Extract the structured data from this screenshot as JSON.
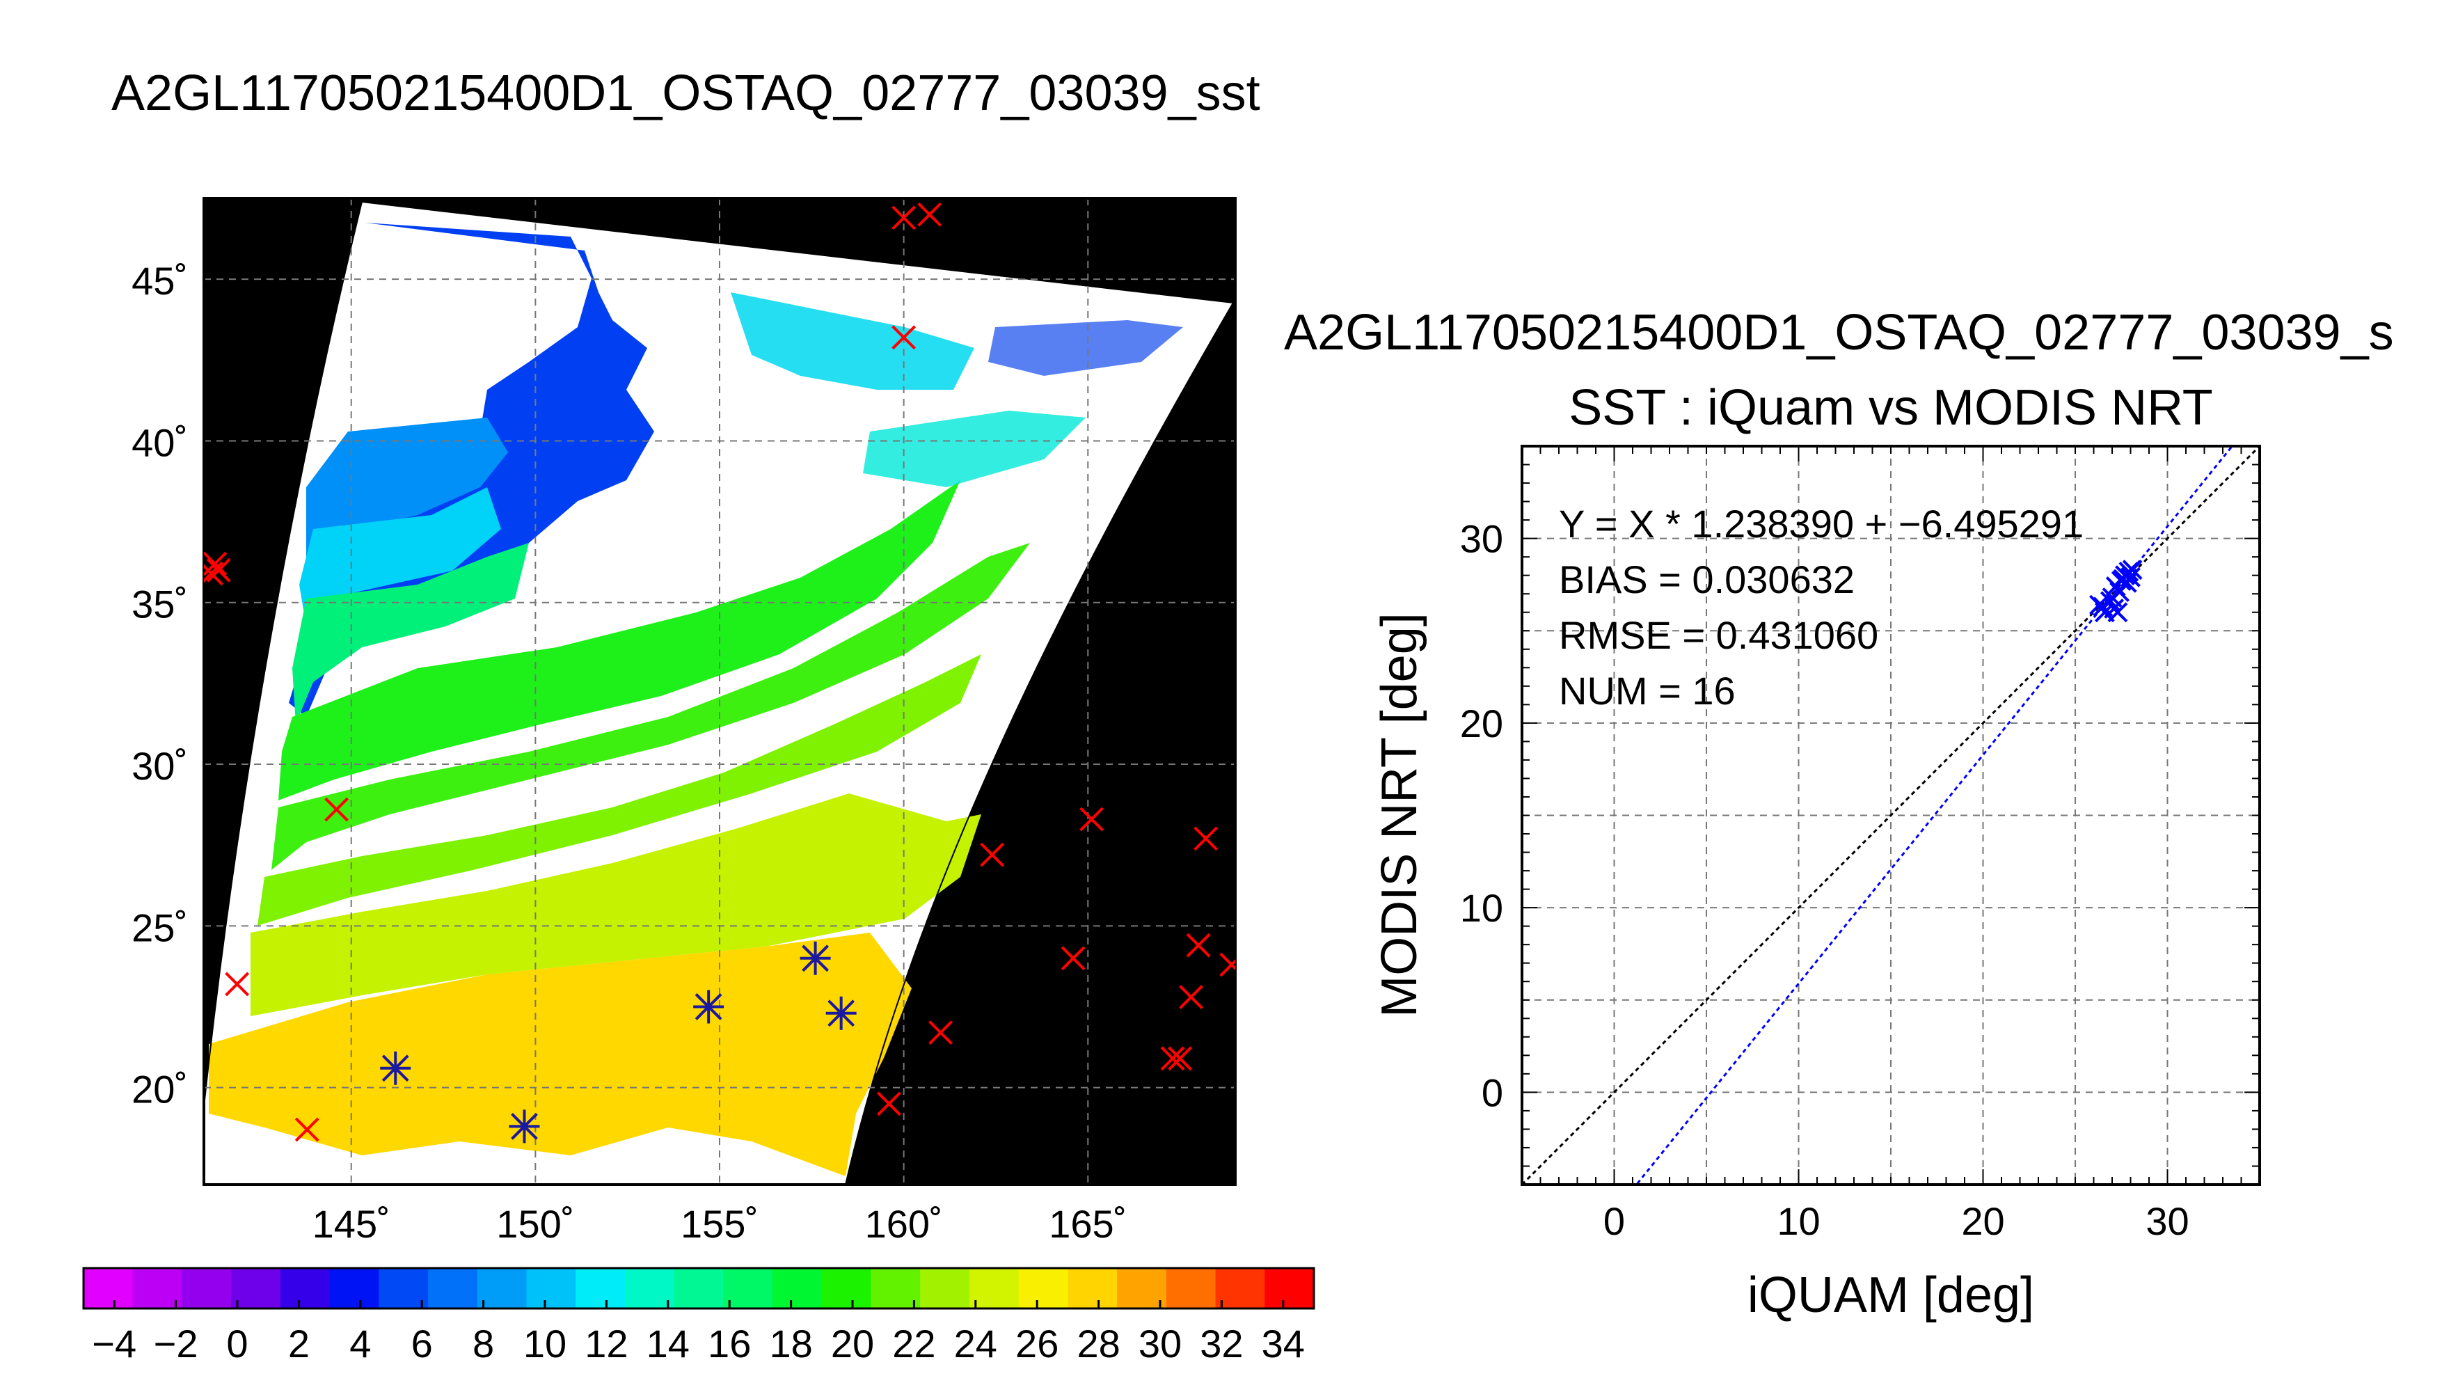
{
  "map_title": "A2GL117050215400D1_OSTAQ_02777_03039_sst",
  "scatter_header": "A2GL117050215400D1_OSTAQ_02777_03039_s",
  "colorbar": {
    "ticks": [
      "-4",
      "-2",
      "0",
      "2",
      "4",
      "6",
      "8",
      "10",
      "12",
      "14",
      "16",
      "18",
      "20",
      "22",
      "24",
      "26",
      "28",
      "30",
      "32",
      "34"
    ],
    "range": [
      -5,
      35
    ],
    "colors": [
      "#e100ff",
      "#bb00f5",
      "#9400ee",
      "#6e00ea",
      "#3500e9",
      "#0013f4",
      "#0049f5",
      "#0071f8",
      "#009df8",
      "#00c2fa",
      "#00ecf8",
      "#00f7c6",
      "#00f794",
      "#00f765",
      "#00f631",
      "#1af200",
      "#62f200",
      "#a2f200",
      "#d3f400",
      "#f8f000",
      "#ffd400",
      "#ffa300",
      "#ff6f00",
      "#ff3400",
      "#ff0000"
    ]
  },
  "map_axes": {
    "lat_labels": [
      "45˚",
      "40˚",
      "35˚",
      "30˚",
      "25˚",
      "20˚"
    ],
    "lon_labels": [
      "145˚",
      "150˚",
      "155˚",
      "160˚",
      "165˚"
    ]
  },
  "chart_data": {
    "type": "scatter",
    "title": "SST : iQuam vs MODIS NRT",
    "xlabel": "iQUAM [deg]",
    "ylabel": "MODIS NRT [deg]",
    "xlim": [
      -5,
      35
    ],
    "ylim": [
      -5,
      35
    ],
    "x_ticks": [
      "0",
      "10",
      "20",
      "30"
    ],
    "y_ticks": [
      "0",
      "10",
      "20",
      "30"
    ],
    "grid": true,
    "annotations": [
      "Y = X * 1.238390 + -6.495291",
      "BIAS = 0.030632",
      "RMSE = 0.431060",
      "NUM = 16"
    ],
    "points": [
      {
        "x": 26.3,
        "y": 26.4
      },
      {
        "x": 26.6,
        "y": 26.0
      },
      {
        "x": 27.0,
        "y": 26.8
      },
      {
        "x": 27.2,
        "y": 27.4
      },
      {
        "x": 27.3,
        "y": 26.0
      },
      {
        "x": 27.5,
        "y": 27.7
      },
      {
        "x": 27.7,
        "y": 28.0
      },
      {
        "x": 27.8,
        "y": 27.6
      },
      {
        "x": 27.9,
        "y": 28.2
      },
      {
        "x": 28.0,
        "y": 27.9
      },
      {
        "x": 26.9,
        "y": 26.6
      },
      {
        "x": 27.4,
        "y": 27.1
      },
      {
        "x": 27.6,
        "y": 27.8
      },
      {
        "x": 26.5,
        "y": 26.3
      },
      {
        "x": 27.1,
        "y": 26.2
      },
      {
        "x": 28.1,
        "y": 28.3
      }
    ],
    "fit": {
      "slope": 1.23839,
      "intercept": -6.495291
    },
    "colors": {
      "points": "#0000ff",
      "fit": "#0000ff",
      "identity": "#000000"
    }
  },
  "map_data": {
    "lat_range": [
      17,
      47.5
    ],
    "lon_range": [
      141,
      169
    ],
    "iquam_points": [
      [
        141.3,
        36.2
      ],
      [
        141.2,
        35.9
      ],
      [
        141.4,
        36.0
      ],
      [
        160.0,
        46.9
      ],
      [
        160.7,
        47.0
      ],
      [
        160.0,
        43.2
      ],
      [
        144.6,
        28.6
      ],
      [
        141.9,
        23.2
      ],
      [
        143.8,
        18.7
      ],
      [
        162.4,
        27.2
      ],
      [
        165.1,
        28.3
      ],
      [
        168.2,
        27.7
      ],
      [
        164.6,
        24.0
      ],
      [
        168.0,
        24.4
      ],
      [
        168.9,
        23.8
      ],
      [
        167.8,
        22.8
      ],
      [
        161.0,
        21.7
      ],
      [
        167.5,
        20.9
      ],
      [
        167.3,
        20.9
      ],
      [
        159.6,
        19.5
      ],
      [
        157.6,
        24.0
      ],
      [
        158.3,
        22.3
      ],
      [
        154.7,
        22.5
      ],
      [
        146.2,
        20.6
      ],
      [
        149.7,
        18.8
      ]
    ],
    "matched_points": [
      [
        157.6,
        24.0
      ],
      [
        158.3,
        22.3
      ],
      [
        154.7,
        22.5
      ],
      [
        146.2,
        20.6
      ],
      [
        149.7,
        18.8
      ]
    ]
  }
}
